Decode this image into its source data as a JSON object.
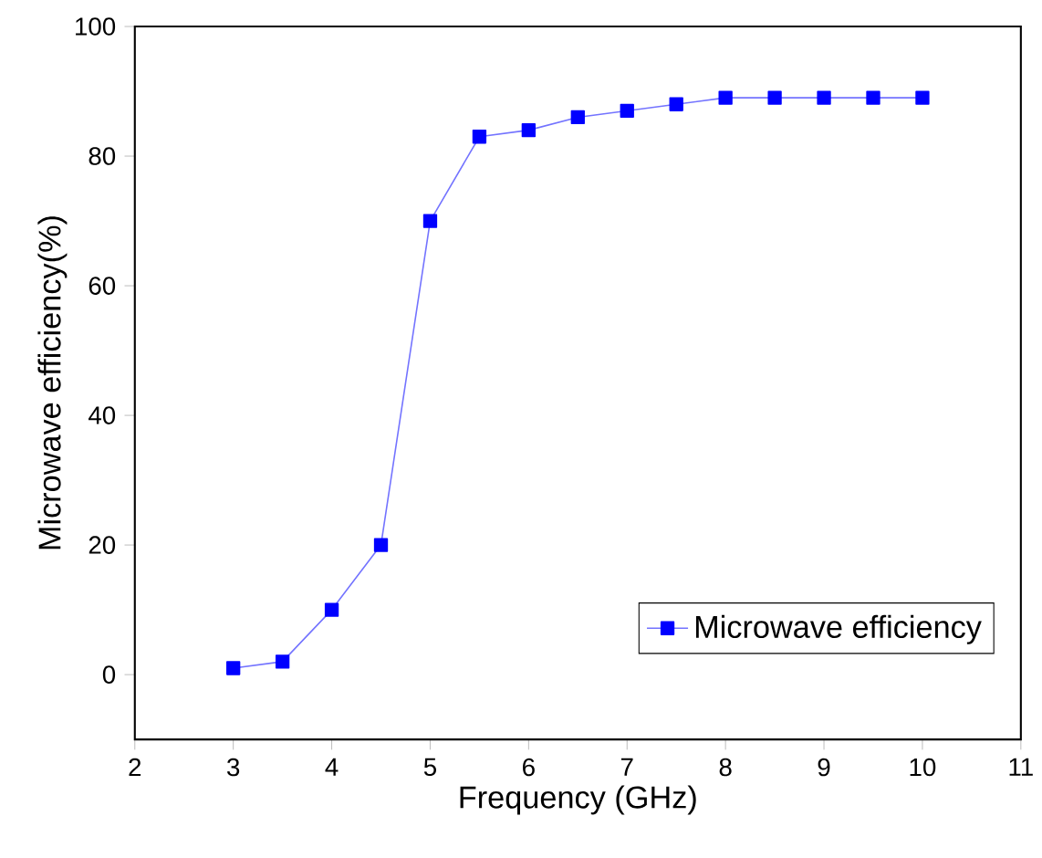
{
  "chart_data": {
    "type": "line",
    "xlabel": "Frequency (GHz)",
    "ylabel": "Microwave efficiency(%)",
    "x": [
      3,
      3.5,
      4,
      4.5,
      5,
      5.5,
      6,
      6.5,
      7,
      7.5,
      8,
      8.5,
      9,
      9.5,
      10
    ],
    "series": [
      {
        "name": "Microwave efficiency",
        "color": "#0000ff",
        "values": [
          1,
          2,
          10,
          20,
          70,
          83,
          84,
          86,
          87,
          88,
          89,
          89,
          89,
          89,
          89
        ]
      }
    ],
    "xlim": [
      2,
      11
    ],
    "ylim": [
      -10,
      100
    ],
    "xticks": [
      2,
      3,
      4,
      5,
      6,
      7,
      8,
      9,
      10,
      11
    ],
    "yticks": [
      0,
      20,
      40,
      60,
      80,
      100
    ],
    "marker": "square",
    "line_style": "solid",
    "legend": "bottom right",
    "grid": false
  }
}
